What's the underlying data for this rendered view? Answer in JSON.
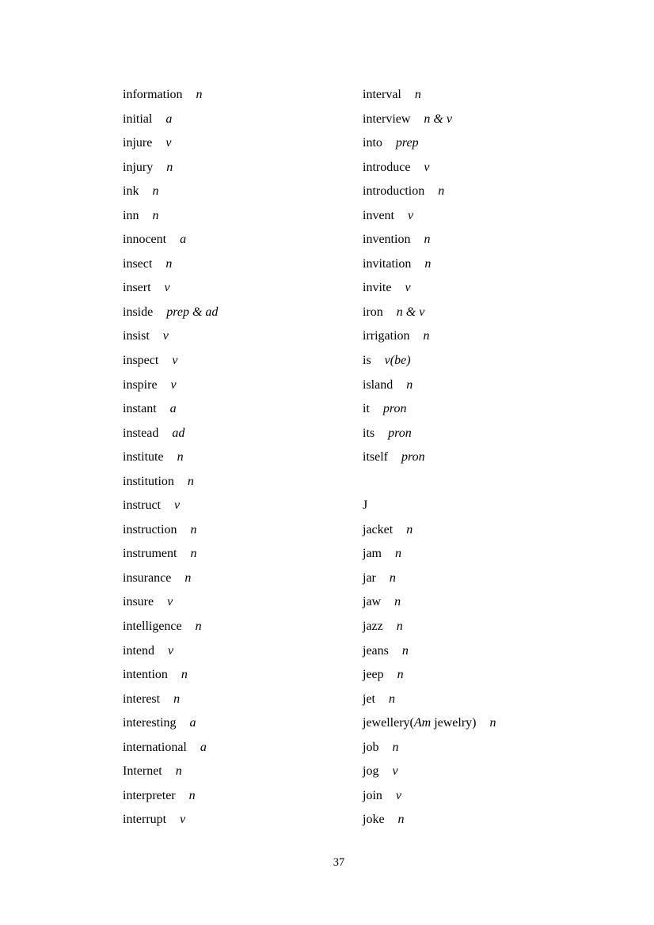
{
  "page_number": "37",
  "list": {
    "left": [
      {
        "word": "information",
        "pos": "n"
      },
      {
        "word": "initial",
        "pos": "a"
      },
      {
        "word": "injure",
        "pos": "v"
      },
      {
        "word": "injury",
        "pos": "n"
      },
      {
        "word": "ink",
        "pos": "n"
      },
      {
        "word": "inn",
        "pos": "n"
      },
      {
        "word": "innocent",
        "pos": "a"
      },
      {
        "word": "insect",
        "pos": "n"
      },
      {
        "word": "insert",
        "pos": "v"
      },
      {
        "word": "inside",
        "pos": "prep & ad"
      },
      {
        "word": "insist",
        "pos": "v"
      },
      {
        "word": "inspect",
        "pos": "v"
      },
      {
        "word": "inspire",
        "pos": "v"
      },
      {
        "word": "instant",
        "pos": "a"
      },
      {
        "word": "instead",
        "pos": "ad"
      },
      {
        "word": "institute",
        "pos": "n"
      },
      {
        "word": "institution",
        "pos": "n"
      },
      {
        "word": "instruct",
        "pos": "v"
      },
      {
        "word": "instruction",
        "pos": "n"
      },
      {
        "word": "instrument",
        "pos": "n"
      },
      {
        "word": "insurance",
        "pos": "n"
      },
      {
        "word": "insure",
        "pos": "v"
      },
      {
        "word": "intelligence",
        "pos": "n"
      },
      {
        "word": "intend",
        "pos": "v"
      },
      {
        "word": "intention",
        "pos": "n"
      },
      {
        "word": "interest",
        "pos": "n"
      },
      {
        "word": "interesting",
        "pos": "a"
      },
      {
        "word": "international",
        "pos": "a"
      },
      {
        "word": "Internet",
        "pos": "n"
      },
      {
        "word": "interpreter",
        "pos": "n"
      },
      {
        "word": "interrupt",
        "pos": "v"
      }
    ],
    "right": [
      {
        "word": "interval",
        "pos": "n"
      },
      {
        "word": "interview",
        "pos": "n & v"
      },
      {
        "word": "into",
        "pos": "prep"
      },
      {
        "word": "introduce",
        "pos": "v"
      },
      {
        "word": "introduction",
        "pos": "n"
      },
      {
        "word": "invent",
        "pos": "v"
      },
      {
        "word": "invention",
        "pos": "n"
      },
      {
        "word": "invitation",
        "pos": "n"
      },
      {
        "word": "invite",
        "pos": "v"
      },
      {
        "word": "iron",
        "pos": "n & v"
      },
      {
        "word": "irrigation",
        "pos": "n"
      },
      {
        "word": "is",
        "pos": "v(be)"
      },
      {
        "word": "island",
        "pos": "n"
      },
      {
        "word": "it",
        "pos": "pron"
      },
      {
        "word": "its",
        "pos": "pron"
      },
      {
        "word": "itself",
        "pos": "pron"
      },
      {
        "type": "blank"
      },
      {
        "type": "header",
        "word": "J"
      },
      {
        "word": "jacket",
        "pos": "n"
      },
      {
        "word": "jam",
        "pos": "n"
      },
      {
        "word": "jar",
        "pos": "n"
      },
      {
        "word": "jaw",
        "pos": "n"
      },
      {
        "word": "jazz",
        "pos": "n"
      },
      {
        "word": "jeans",
        "pos": "n"
      },
      {
        "word": "jeep",
        "pos": "n"
      },
      {
        "word": "jet",
        "pos": "n"
      },
      {
        "word": "jewellery(",
        "word_italic": "Am",
        "word_suffix": " jewelry)",
        "pos": "n"
      },
      {
        "word": "job",
        "pos": "n"
      },
      {
        "word": "jog",
        "pos": "v"
      },
      {
        "word": "join",
        "pos": "v"
      },
      {
        "word": "joke",
        "pos": "n"
      }
    ]
  }
}
